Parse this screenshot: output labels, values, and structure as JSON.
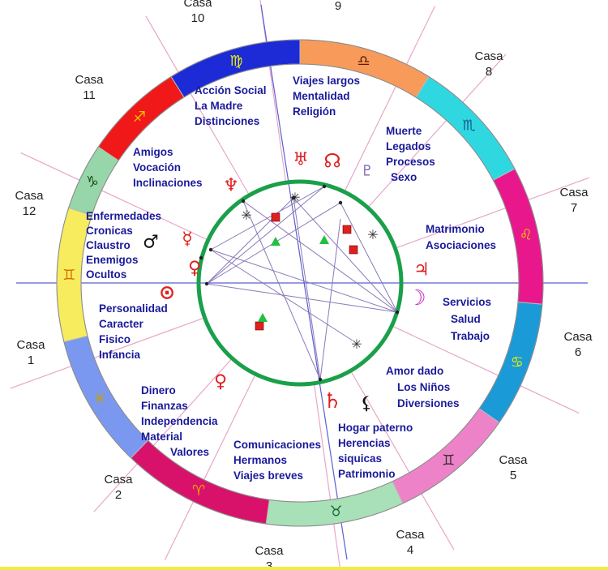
{
  "casas": [
    {
      "label": "Casa",
      "num": "1"
    },
    {
      "label": "Casa",
      "num": "2"
    },
    {
      "label": "Casa",
      "num": "3"
    },
    {
      "label": "Casa",
      "num": "4"
    },
    {
      "label": "Casa",
      "num": "5"
    },
    {
      "label": "Casa",
      "num": "6"
    },
    {
      "label": "Casa",
      "num": "7"
    },
    {
      "label": "Casa",
      "num": "8"
    },
    {
      "label": "",
      "num": "9"
    },
    {
      "label": "Casa",
      "num": "10"
    },
    {
      "label": "Casa",
      "num": "11"
    },
    {
      "label": "Casa",
      "num": "12"
    }
  ],
  "areas": [
    {
      "lines": [
        "Personalidad",
        "Caracter",
        "Fisico",
        "Infancia"
      ]
    },
    {
      "lines": [
        "Dinero",
        "Finanzas",
        "Independencia",
        "Material",
        "Valores"
      ]
    },
    {
      "lines": [
        "Comunicaciones",
        "Hermanos",
        "Viajes breves"
      ]
    },
    {
      "lines": [
        "Hogar paterno",
        "Herencias",
        "siquicas",
        "Patrimonio"
      ]
    },
    {
      "lines": [
        "Amor dado",
        "Los Niños",
        "Diversiones"
      ]
    },
    {
      "lines": [
        "Servicios",
        "Salud",
        "Trabajo"
      ]
    },
    {
      "lines": [
        "Matrimonio",
        "Asociaciones"
      ]
    },
    {
      "lines": [
        "Muerte",
        "Legados",
        "Procesos",
        "Sexo"
      ]
    },
    {
      "lines": [
        "Viajes largos",
        "Mentalidad",
        "Religión"
      ]
    },
    {
      "lines": [
        "Acción Social",
        "La Madre",
        "Distinciones"
      ]
    },
    {
      "lines": [
        "Amigos",
        "Vocación",
        "Inclinaciones"
      ]
    },
    {
      "lines": [
        "Enfermedades",
        "Cronicas",
        "Claustro",
        "Enemigos",
        "Ocultos"
      ]
    }
  ],
  "zodiac": [
    {
      "name": "virgo",
      "glyph": "♍",
      "color": "#cccccc"
    },
    {
      "name": "virgo-band",
      "glyph": "♍",
      "color": "#1c2bd6"
    },
    {
      "name": "libra",
      "glyph": "♎",
      "color": "#f79a5a"
    },
    {
      "name": "scorpio",
      "glyph": "♏",
      "color": "#2fd8e0"
    },
    {
      "name": "sagittarius",
      "glyph": "♐",
      "color": "#e8178c"
    },
    {
      "name": "capricorn",
      "glyph": "♑",
      "color": "#1a9ad6"
    },
    {
      "name": "aquarius",
      "glyph": "♒",
      "color": "#ee82c8"
    },
    {
      "name": "pisces",
      "glyph": "♓",
      "color": "#a8e0b8"
    },
    {
      "name": "aries",
      "glyph": "♈",
      "color": "#d8126a"
    },
    {
      "name": "taurus",
      "glyph": "♉",
      "color": "#7a98f0"
    },
    {
      "name": "gemini",
      "glyph": "♊",
      "color": "#f6ec5e"
    },
    {
      "name": "cancer",
      "glyph": "♋",
      "color": "#96d6a8"
    },
    {
      "name": "leo",
      "glyph": "♌",
      "color": "#f01818"
    }
  ],
  "planets": {
    "sun": "⊙",
    "moon": "☽",
    "mercury": "☿",
    "venus": "♀",
    "mars": "♂",
    "jupiter": "♃",
    "saturn": "♄",
    "uranus": "♅",
    "neptune": "♆",
    "pluto": "♇",
    "node": "☊",
    "lilith": "⚸",
    "vesta": "♀",
    "venus2": "♀"
  },
  "colors": {
    "circle": "#1aa04a",
    "area_text": "#1a1a9a",
    "line_pink": "#e8a6c8",
    "line_blue": "#5b5fd0",
    "planet": "#e02020"
  }
}
